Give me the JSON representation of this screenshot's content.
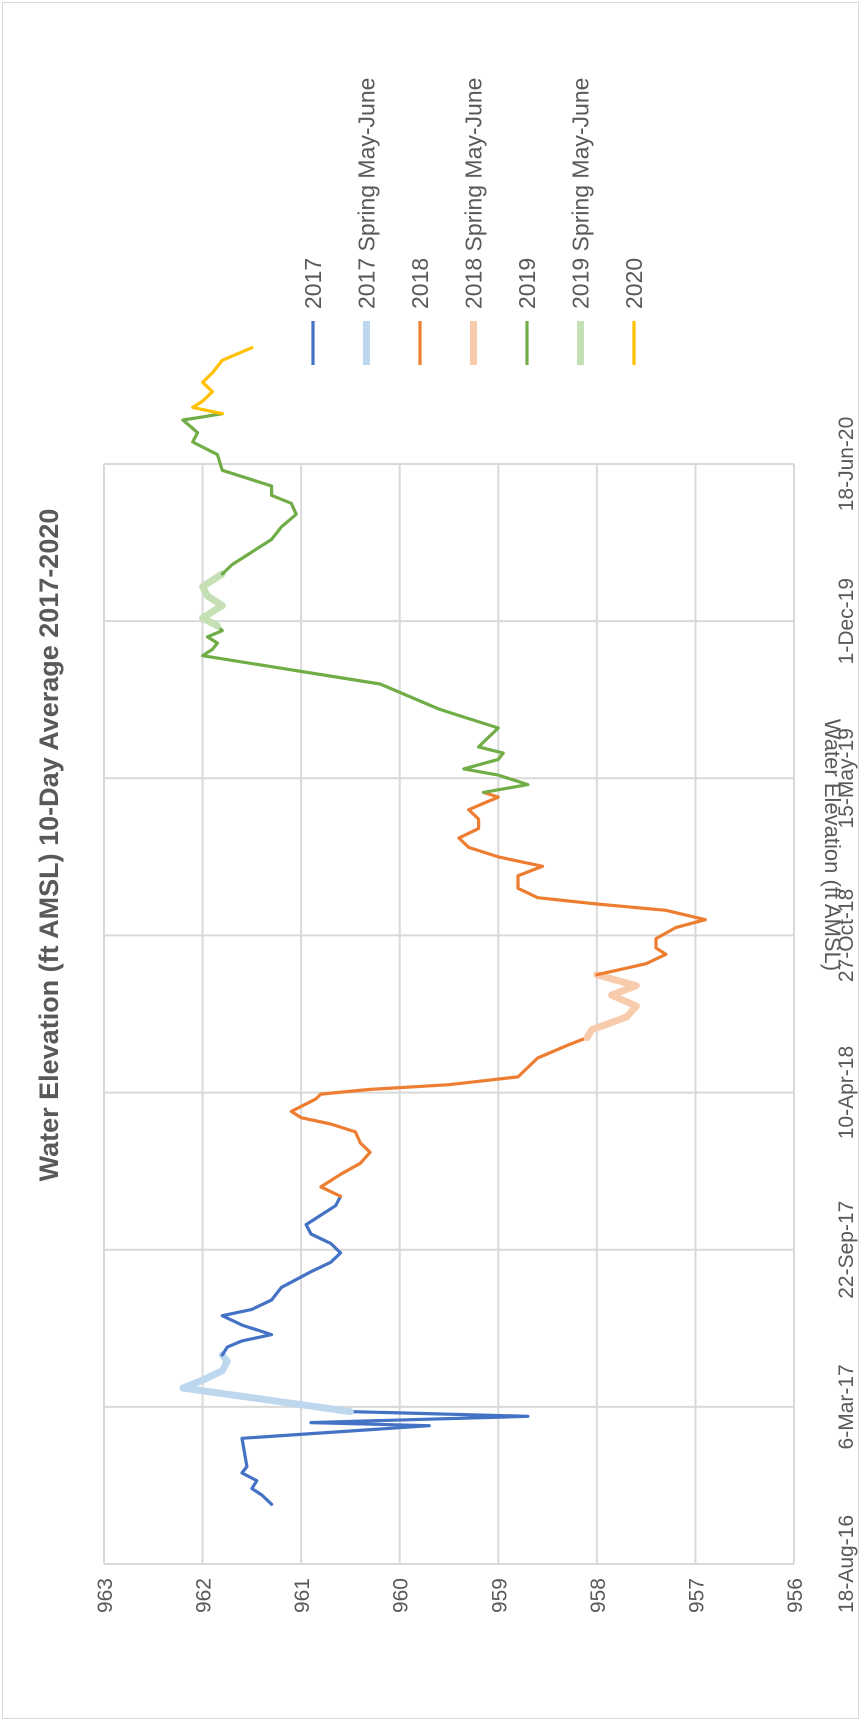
{
  "chart_data": {
    "type": "line",
    "orientation": "rotated-90-clockwise",
    "title": "Water Elevation (ft AMSL) 10-Day Average 2017-2020",
    "ylabel": "Water Elevation (ft AMSL)",
    "xlabel": "",
    "ylim": [
      956,
      963
    ],
    "y_ticks": [
      "963",
      "962",
      "961",
      "960",
      "959",
      "958",
      "957",
      "956"
    ],
    "x_ticks": [
      "18-Aug-16",
      "6-Mar-17",
      "22-Sep-17",
      "10-Apr-18",
      "27-Oct-18",
      "15-May-19",
      "1-Dec-19",
      "18-Jun-20"
    ],
    "grid": true,
    "legend_position": "top",
    "legend": [
      {
        "name": "2017",
        "color": "#4472C4",
        "width": "thin"
      },
      {
        "name": "2017 Spring May-June",
        "color": "#BDD7EE",
        "width": "thick"
      },
      {
        "name": "2018",
        "color": "#ED7D31",
        "width": "thin"
      },
      {
        "name": "2018 Spring May-June",
        "color": "#F8CBAD",
        "width": "thick"
      },
      {
        "name": "2019",
        "color": "#70AD47",
        "width": "thin"
      },
      {
        "name": "2019 Spring May-June",
        "color": "#C5E0B4",
        "width": "thick"
      },
      {
        "name": "2020",
        "color": "#FFC000",
        "width": "thin"
      }
    ],
    "series": [
      {
        "name": "2017",
        "color": "#4472C4",
        "width": "thin",
        "points": [
          [
            0.38,
            961.3
          ],
          [
            0.44,
            961.4
          ],
          [
            0.48,
            961.5
          ],
          [
            0.53,
            961.45
          ],
          [
            0.58,
            961.6
          ],
          [
            0.62,
            961.55
          ],
          [
            0.8,
            961.6
          ],
          [
            0.88,
            959.7
          ],
          [
            0.9,
            960.9
          ],
          [
            0.94,
            958.7
          ],
          [
            0.97,
            960.5
          ]
        ]
      },
      {
        "name": "2017 Spring May-June",
        "color": "#BDD7EE",
        "width": "thick",
        "points": [
          [
            0.97,
            960.5
          ],
          [
            1.12,
            962.2
          ],
          [
            1.17,
            962.0
          ],
          [
            1.23,
            961.8
          ],
          [
            1.29,
            961.75
          ],
          [
            1.33,
            961.8
          ]
        ]
      },
      {
        "name": "2017",
        "color": "#4472C4",
        "width": "thin",
        "points": [
          [
            1.33,
            961.8
          ],
          [
            1.38,
            961.75
          ],
          [
            1.42,
            961.6
          ],
          [
            1.46,
            961.3
          ],
          [
            1.52,
            961.6
          ],
          [
            1.58,
            961.8
          ],
          [
            1.62,
            961.5
          ],
          [
            1.68,
            961.3
          ],
          [
            1.76,
            961.2
          ],
          [
            1.86,
            960.9
          ],
          [
            1.92,
            960.7
          ],
          [
            1.98,
            960.6
          ],
          [
            2.04,
            960.7
          ],
          [
            2.1,
            960.9
          ],
          [
            2.16,
            960.95
          ],
          [
            2.22,
            960.8
          ],
          [
            2.28,
            960.65
          ],
          [
            2.34,
            960.6
          ]
        ]
      },
      {
        "name": "2018",
        "color": "#ED7D31",
        "width": "thin",
        "points": [
          [
            2.34,
            960.6
          ],
          [
            2.4,
            960.8
          ],
          [
            2.48,
            960.6
          ],
          [
            2.55,
            960.4
          ],
          [
            2.62,
            960.3
          ],
          [
            2.68,
            960.4
          ],
          [
            2.75,
            960.45
          ],
          [
            2.8,
            960.7
          ],
          [
            2.84,
            961.0
          ],
          [
            2.88,
            961.1
          ],
          [
            2.96,
            960.85
          ],
          [
            2.99,
            960.8
          ],
          [
            3.02,
            960.3
          ],
          [
            3.05,
            959.5
          ],
          [
            3.1,
            958.8
          ],
          [
            3.22,
            958.6
          ],
          [
            3.3,
            958.3
          ],
          [
            3.35,
            958.1
          ]
        ]
      },
      {
        "name": "2018 Spring May-June",
        "color": "#F8CBAD",
        "width": "thick",
        "points": [
          [
            3.35,
            958.1
          ],
          [
            3.4,
            958.05
          ],
          [
            3.48,
            957.7
          ],
          [
            3.55,
            957.6
          ],
          [
            3.62,
            957.85
          ],
          [
            3.68,
            957.6
          ],
          [
            3.75,
            958.0
          ]
        ]
      },
      {
        "name": "2018",
        "color": "#ED7D31",
        "width": "thin",
        "points": [
          [
            3.75,
            958.0
          ],
          [
            3.82,
            957.5
          ],
          [
            3.88,
            957.3
          ],
          [
            3.92,
            957.4
          ],
          [
            3.98,
            957.4
          ],
          [
            4.05,
            957.2
          ],
          [
            4.1,
            956.9
          ],
          [
            4.16,
            957.3
          ],
          [
            4.2,
            958.0
          ],
          [
            4.24,
            958.6
          ],
          [
            4.3,
            958.8
          ],
          [
            4.38,
            958.8
          ],
          [
            4.44,
            958.55
          ],
          [
            4.5,
            959.0
          ],
          [
            4.56,
            959.3
          ],
          [
            4.62,
            959.4
          ],
          [
            4.68,
            959.2
          ],
          [
            4.74,
            959.2
          ],
          [
            4.8,
            959.3
          ],
          [
            4.84,
            959.15
          ],
          [
            4.88,
            959.0
          ],
          [
            4.91,
            959.15
          ]
        ]
      },
      {
        "name": "2019",
        "color": "#70AD47",
        "width": "thin",
        "points": [
          [
            4.91,
            959.15
          ],
          [
            4.96,
            958.7
          ],
          [
            5.02,
            959.0
          ],
          [
            5.06,
            959.35
          ],
          [
            5.12,
            959.0
          ],
          [
            5.16,
            958.95
          ],
          [
            5.2,
            959.2
          ],
          [
            5.26,
            959.1
          ],
          [
            5.32,
            959.0
          ],
          [
            5.38,
            959.3
          ],
          [
            5.44,
            959.6
          ],
          [
            5.6,
            960.2
          ],
          [
            5.78,
            962.0
          ],
          [
            5.82,
            961.9
          ],
          [
            5.86,
            961.85
          ],
          [
            5.9,
            961.95
          ],
          [
            5.94,
            961.8
          ],
          [
            5.97,
            961.85
          ]
        ]
      },
      {
        "name": "2019 Spring May-June",
        "color": "#C5E0B4",
        "width": "thick",
        "points": [
          [
            5.97,
            961.85
          ],
          [
            6.02,
            962.0
          ],
          [
            6.1,
            961.8
          ],
          [
            6.16,
            961.95
          ],
          [
            6.22,
            962.0
          ],
          [
            6.3,
            961.8
          ]
        ]
      },
      {
        "name": "2019",
        "color": "#70AD47",
        "width": "thin",
        "points": [
          [
            6.3,
            961.8
          ],
          [
            6.36,
            961.7
          ],
          [
            6.44,
            961.5
          ],
          [
            6.52,
            961.3
          ],
          [
            6.6,
            961.2
          ],
          [
            6.68,
            961.05
          ],
          [
            6.75,
            961.1
          ],
          [
            6.8,
            961.3
          ],
          [
            6.86,
            961.3
          ],
          [
            6.96,
            961.8
          ],
          [
            7.06,
            961.85
          ],
          [
            7.14,
            962.1
          ],
          [
            7.2,
            962.05
          ],
          [
            7.28,
            962.2
          ],
          [
            7.3,
            962.0
          ],
          [
            7.32,
            961.8
          ]
        ]
      },
      {
        "name": "2020",
        "color": "#FFC000",
        "width": "thin",
        "points": [
          [
            7.32,
            961.8
          ],
          [
            7.36,
            962.1
          ],
          [
            7.4,
            962.0
          ],
          [
            7.46,
            961.9
          ],
          [
            7.52,
            962.0
          ],
          [
            7.58,
            961.9
          ],
          [
            7.66,
            961.8
          ],
          [
            7.74,
            961.5
          ]
        ]
      }
    ]
  }
}
